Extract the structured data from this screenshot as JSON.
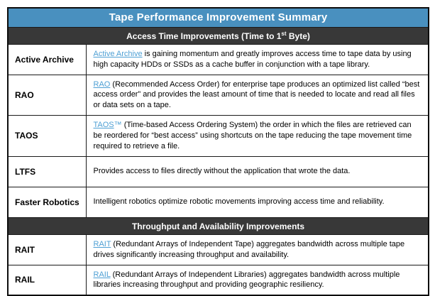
{
  "title": "Tape Performance Improvement Summary",
  "colors": {
    "header_blue": "#4990BF",
    "section_dark": "#383838",
    "link_blue": "#4D9FD4",
    "border": "#1A1A1A",
    "text": "#000000",
    "background": "#FFFFFF"
  },
  "sections": [
    {
      "heading_parts": {
        "pre": "Access Time Improvements (Time to 1",
        "sup": "st",
        "post": " Byte)"
      },
      "rows": [
        {
          "label": "Active Archive",
          "link": "Active Archive",
          "link_tm": "",
          "text": " is gaining momentum and greatly improves access time to tape data by using high capacity HDDs or SSDs as a cache buffer in conjunction with a tape library."
        },
        {
          "label": "RAO",
          "link": "RAO",
          "link_tm": "",
          "text": " (Recommended Access Order) for enterprise tape produces an optimized list called “best access order” and provides the least amount of time that is needed to locate and read all files or data sets on a tape."
        },
        {
          "label": "TAOS",
          "link": "TAOS",
          "link_tm": "™",
          "text": " (Time-based Access Ordering System) the order in which the files are retrieved can be reordered for “best access” using shortcuts on the tape reducing the tape movement time required to retrieve a file."
        },
        {
          "label": "LTFS",
          "link": null,
          "link_tm": "",
          "text": "Provides access to files directly without the application that wrote the data."
        },
        {
          "label": "Faster Robotics",
          "link": null,
          "link_tm": "",
          "text": "Intelligent robotics optimize robotic movements improving access time and reliability."
        }
      ]
    },
    {
      "heading_parts": {
        "pre": "Throughput and Availability Improvements",
        "sup": "",
        "post": ""
      },
      "rows": [
        {
          "label": "RAIT",
          "link": "RAIT",
          "link_tm": "",
          "text": " (Redundant Arrays of Independent Tape) aggregates bandwidth across multiple tape drives significantly increasing throughput and availability."
        },
        {
          "label": "RAIL",
          "link": "RAIL",
          "link_tm": "",
          "text": " (Redundant Arrays of Independent Libraries) aggregates bandwidth across multiple libraries increasing throughput and providing geographic resiliency."
        }
      ]
    }
  ]
}
